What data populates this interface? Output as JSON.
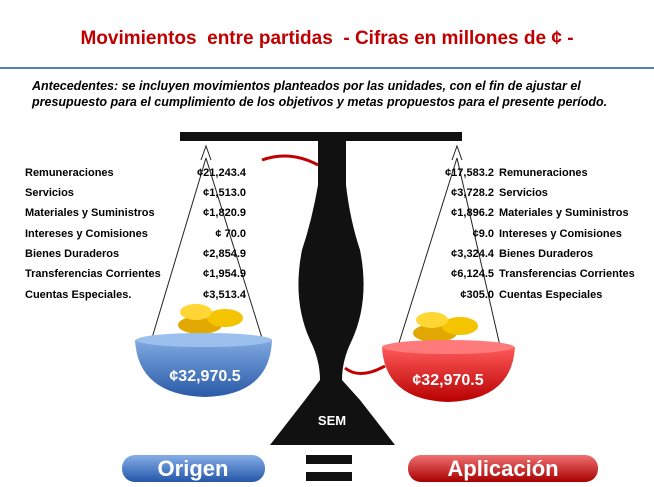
{
  "title": "Movimientos  entre partidas  - Cifras en millones de ¢ -",
  "intro": "Antecedentes: se incluyen movimientos planteados por las unidades, con el fin de ajustar el presupuesto para el cumplimiento de los objetivos y metas propuestos para el presente período.",
  "left": {
    "items": [
      {
        "label": "Remuneraciones",
        "amount": "¢21,243.4"
      },
      {
        "label": "Servicios",
        "amount": "¢1,513.0"
      },
      {
        "label": "Materiales y Suministros",
        "amount": "¢1,820.9"
      },
      {
        "label": "Intereses y Comisiones",
        "amount": "¢ 70.0"
      },
      {
        "label": "Bienes Duraderos",
        "amount": "¢2,854.9"
      },
      {
        "label": "Transferencias Corrientes",
        "amount": "¢1,954.9"
      },
      {
        "label": "Cuentas Especiales.",
        "amount": "¢3,513.4"
      }
    ],
    "total": "¢32,970.5"
  },
  "right": {
    "items": [
      {
        "label": "Remuneraciones",
        "amount": "¢17,583.2"
      },
      {
        "label": "Servicios",
        "amount": "¢3,728.2"
      },
      {
        "label": "Materiales y Suministros",
        "amount": "¢1,896.2"
      },
      {
        "label": "Intereses y Comisiones",
        "amount": "¢9.0"
      },
      {
        "label": "Bienes Duraderos",
        "amount": "¢3,324.4"
      },
      {
        "label": "Transferencias Corrientes",
        "amount": "¢6,124.5"
      },
      {
        "label": "Cuentas Especiales",
        "amount": "¢305.0"
      }
    ],
    "total": "¢32,970.5"
  },
  "center_label": "SEM",
  "buttons": {
    "origin": "Origen",
    "application": "Aplicación"
  }
}
